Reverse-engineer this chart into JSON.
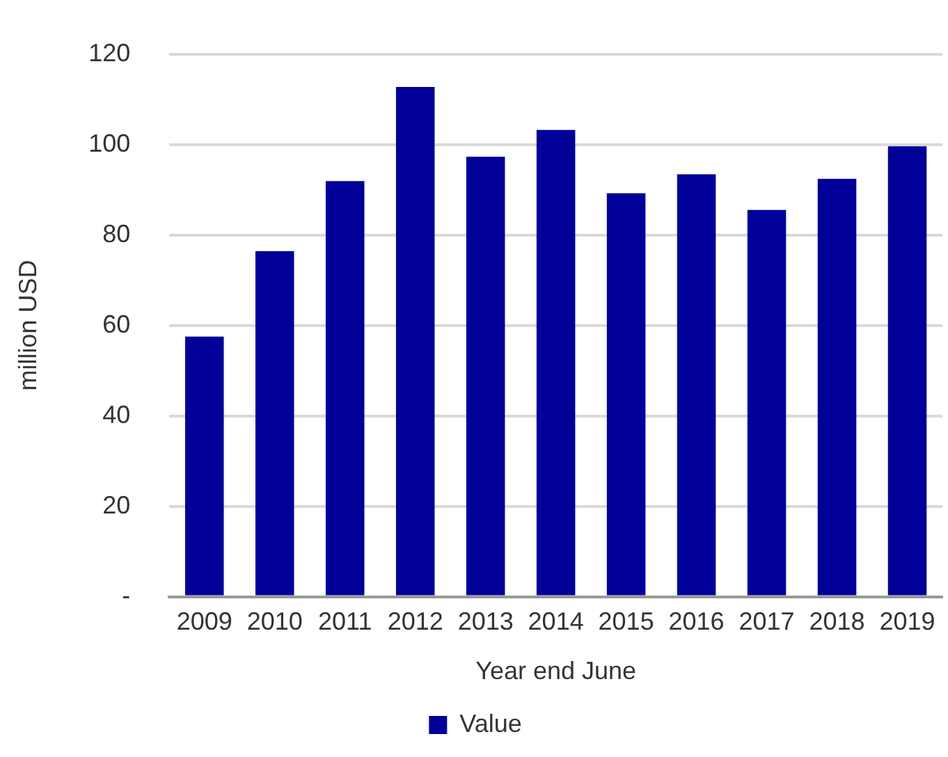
{
  "chart_data": {
    "type": "bar",
    "xlabel": "Year end June",
    "ylabel": "million USD",
    "categories": [
      "2009",
      "2010",
      "2011",
      "2012",
      "2013",
      "2014",
      "2015",
      "2016",
      "2017",
      "2018",
      "2019"
    ],
    "series": [
      {
        "name": "Value",
        "color": "#000099",
        "values": [
          57.5,
          76.4,
          91.9,
          112.7,
          97.3,
          103.2,
          89.2,
          93.4,
          85.5,
          92.4,
          99.6
        ]
      }
    ],
    "ylim": [
      0,
      120
    ],
    "yticks": [
      {
        "value": 0,
        "label": "-"
      },
      20,
      40,
      60,
      80,
      100,
      120
    ],
    "grid": "y",
    "legend": "bottom"
  }
}
